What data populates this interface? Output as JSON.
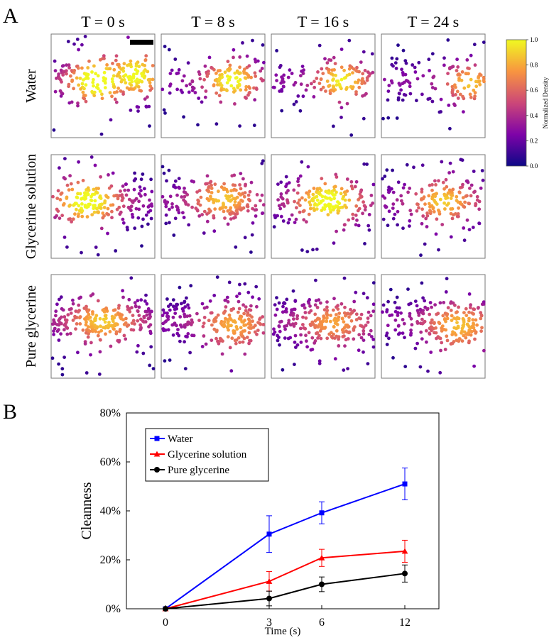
{
  "figure": {
    "panel_a_label": "A",
    "panel_b_label": "B"
  },
  "chart_data": [
    {
      "type": "scatter",
      "panel": "A",
      "time_labels": [
        "T = 0 s",
        "T = 8 s",
        "T = 16 s",
        "T = 24 s"
      ],
      "row_labels": [
        "Water",
        "Glycerine solution",
        "Pure glycerine"
      ],
      "colorbar": {
        "label": "Normalized Density",
        "ticks": [
          "0.0",
          "0.2",
          "0.4",
          "0.6",
          "0.8",
          "1.0"
        ],
        "range": [
          0,
          1
        ],
        "colormap": "plasma"
      },
      "grid": [
        [
          {
            "seed": 11,
            "n": 230,
            "hot": [
              [
                0.45,
                0.45,
                0.9
              ],
              [
                0.8,
                0.35,
                0.8
              ]
            ],
            "fall": 0.2
          },
          {
            "seed": 12,
            "n": 160,
            "hot": [
              [
                0.68,
                0.45,
                0.75
              ]
            ],
            "fall": 0.18
          },
          {
            "seed": 13,
            "n": 150,
            "hot": [
              [
                0.68,
                0.45,
                0.7
              ]
            ],
            "fall": 0.18
          },
          {
            "seed": 14,
            "n": 140,
            "hot": [
              [
                0.85,
                0.5,
                0.6
              ]
            ],
            "fall": 0.18
          }
        ],
        [
          {
            "seed": 21,
            "n": 210,
            "hot": [
              [
                0.35,
                0.45,
                0.8
              ]
            ],
            "fall": 0.22
          },
          {
            "seed": 22,
            "n": 210,
            "hot": [
              [
                0.6,
                0.4,
                0.6
              ]
            ],
            "fall": 0.22
          },
          {
            "seed": 23,
            "n": 200,
            "hot": [
              [
                0.55,
                0.45,
                0.8
              ]
            ],
            "fall": 0.22
          },
          {
            "seed": 24,
            "n": 190,
            "hot": [
              [
                0.6,
                0.45,
                0.6
              ]
            ],
            "fall": 0.22
          }
        ],
        [
          {
            "seed": 31,
            "n": 260,
            "hot": [
              [
                0.5,
                0.45,
                0.6
              ]
            ],
            "fall": 0.24
          },
          {
            "seed": 32,
            "n": 240,
            "hot": [
              [
                0.7,
                0.55,
                0.55
              ]
            ],
            "fall": 0.24
          },
          {
            "seed": 33,
            "n": 250,
            "hot": [
              [
                0.6,
                0.5,
                0.5
              ]
            ],
            "fall": 0.24
          },
          {
            "seed": 34,
            "n": 230,
            "hot": [
              [
                0.75,
                0.55,
                0.6
              ]
            ],
            "fall": 0.24
          }
        ]
      ]
    },
    {
      "type": "line",
      "panel": "B",
      "categories": [
        "0",
        "3",
        "6",
        "12"
      ],
      "xlabel": "Time (s)",
      "ylabel": "Cleanness",
      "ylim": [
        0,
        80
      ],
      "yticks": [
        "0%",
        "20%",
        "40%",
        "60%",
        "80%"
      ],
      "grid": false,
      "legend": "top-left",
      "series": [
        {
          "name": "Water",
          "values": [
            0,
            30.5,
            39.2,
            51.0
          ],
          "errors": [
            0,
            7.5,
            4.5,
            6.5
          ],
          "color": "#0000ff",
          "marker": "square"
        },
        {
          "name": "Glycerine solution",
          "values": [
            0,
            11.2,
            20.8,
            23.5
          ],
          "errors": [
            0,
            4.0,
            3.5,
            4.5
          ],
          "color": "#ff0000",
          "marker": "triangle"
        },
        {
          "name": "Pure glycerine",
          "values": [
            0,
            4.2,
            10.0,
            14.4
          ],
          "errors": [
            0,
            3.0,
            3.0,
            3.5
          ],
          "color": "#000000",
          "marker": "circle"
        }
      ]
    }
  ]
}
